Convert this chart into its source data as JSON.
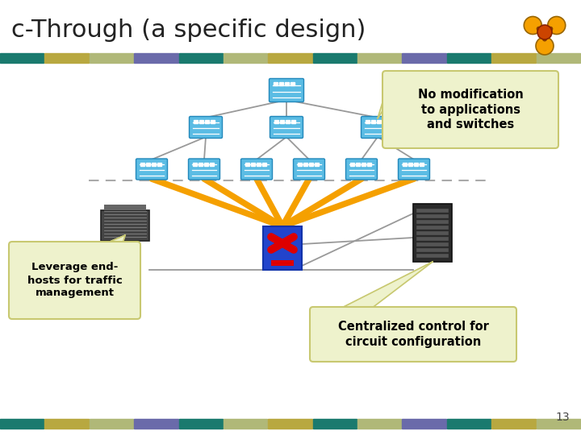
{
  "title": "c-Through (a specific design)",
  "title_fontsize": 22,
  "title_color": "#222222",
  "bg_color": "#ffffff",
  "bar_colors": [
    "#1a7a6e",
    "#b8a840",
    "#b0b878",
    "#6a6aaa",
    "#1a7a6e",
    "#b0b878",
    "#b8a840",
    "#1a7a6e",
    "#b0b878",
    "#6a6aaa",
    "#1a7a6e",
    "#b8a840",
    "#b0b878"
  ],
  "callout_bg": "#eef2cc",
  "callout_border": "#c8c870",
  "callout_text_color": "#000000",
  "callout1_text": "No modification\nto applications\nand switches",
  "callout2_text": "Leverage end-\nhosts for traffic\nmanagement",
  "callout3_text": "Centralized control for\ncircuit configuration",
  "switch_color": "#5bbce4",
  "orange_line_color": "#f5a000",
  "gray_line_color": "#999999",
  "dashed_line_color": "#aaaaaa",
  "page_num": "13",
  "bottom_bar_colors": [
    "#1a7a6e",
    "#b8a840",
    "#b0b878",
    "#6a6aaa",
    "#1a7a6e",
    "#b0b878",
    "#b8a840",
    "#1a7a6e",
    "#b0b878",
    "#6a6aaa",
    "#1a7a6e",
    "#b8a840",
    "#b0b878"
  ],
  "logo_color": "#f5a000",
  "logo_center_color": "#cc4400"
}
